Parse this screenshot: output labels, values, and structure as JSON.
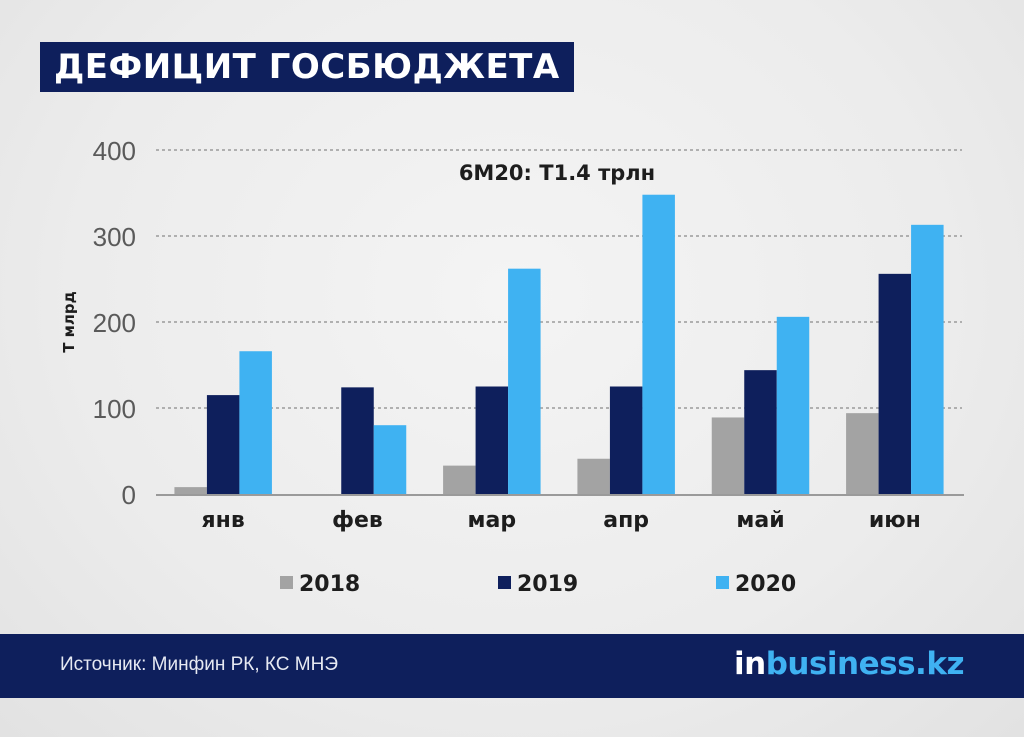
{
  "header": {
    "title": "ДЕФИЦИТ ГОСБЮДЖЕТА"
  },
  "footer": {
    "source": "Источник: Минфин РК, КС МНЭ",
    "logo_prefix": "in",
    "logo_rest": "business.kz"
  },
  "chart_data": {
    "type": "bar",
    "title": "",
    "annotation": "6М20: Т1.4 трлн",
    "ylabel": "Т млрд",
    "xlabel": "",
    "ylim": [
      0,
      400
    ],
    "yticks": [
      0,
      100,
      200,
      300,
      400
    ],
    "grid": true,
    "legend_position": "bottom",
    "categories": [
      "янв",
      "фев",
      "мар",
      "апр",
      "май",
      "июн"
    ],
    "series": [
      {
        "name": "2018",
        "color": "#a3a3a3",
        "values": [
          8,
          0,
          33,
          41,
          89,
          94
        ]
      },
      {
        "name": "2019",
        "color": "#0e1f5c",
        "values": [
          115,
          124,
          125,
          125,
          144,
          256
        ]
      },
      {
        "name": "2020",
        "color": "#3fb2f2",
        "values": [
          166,
          80,
          262,
          348,
          206,
          313
        ]
      }
    ]
  }
}
